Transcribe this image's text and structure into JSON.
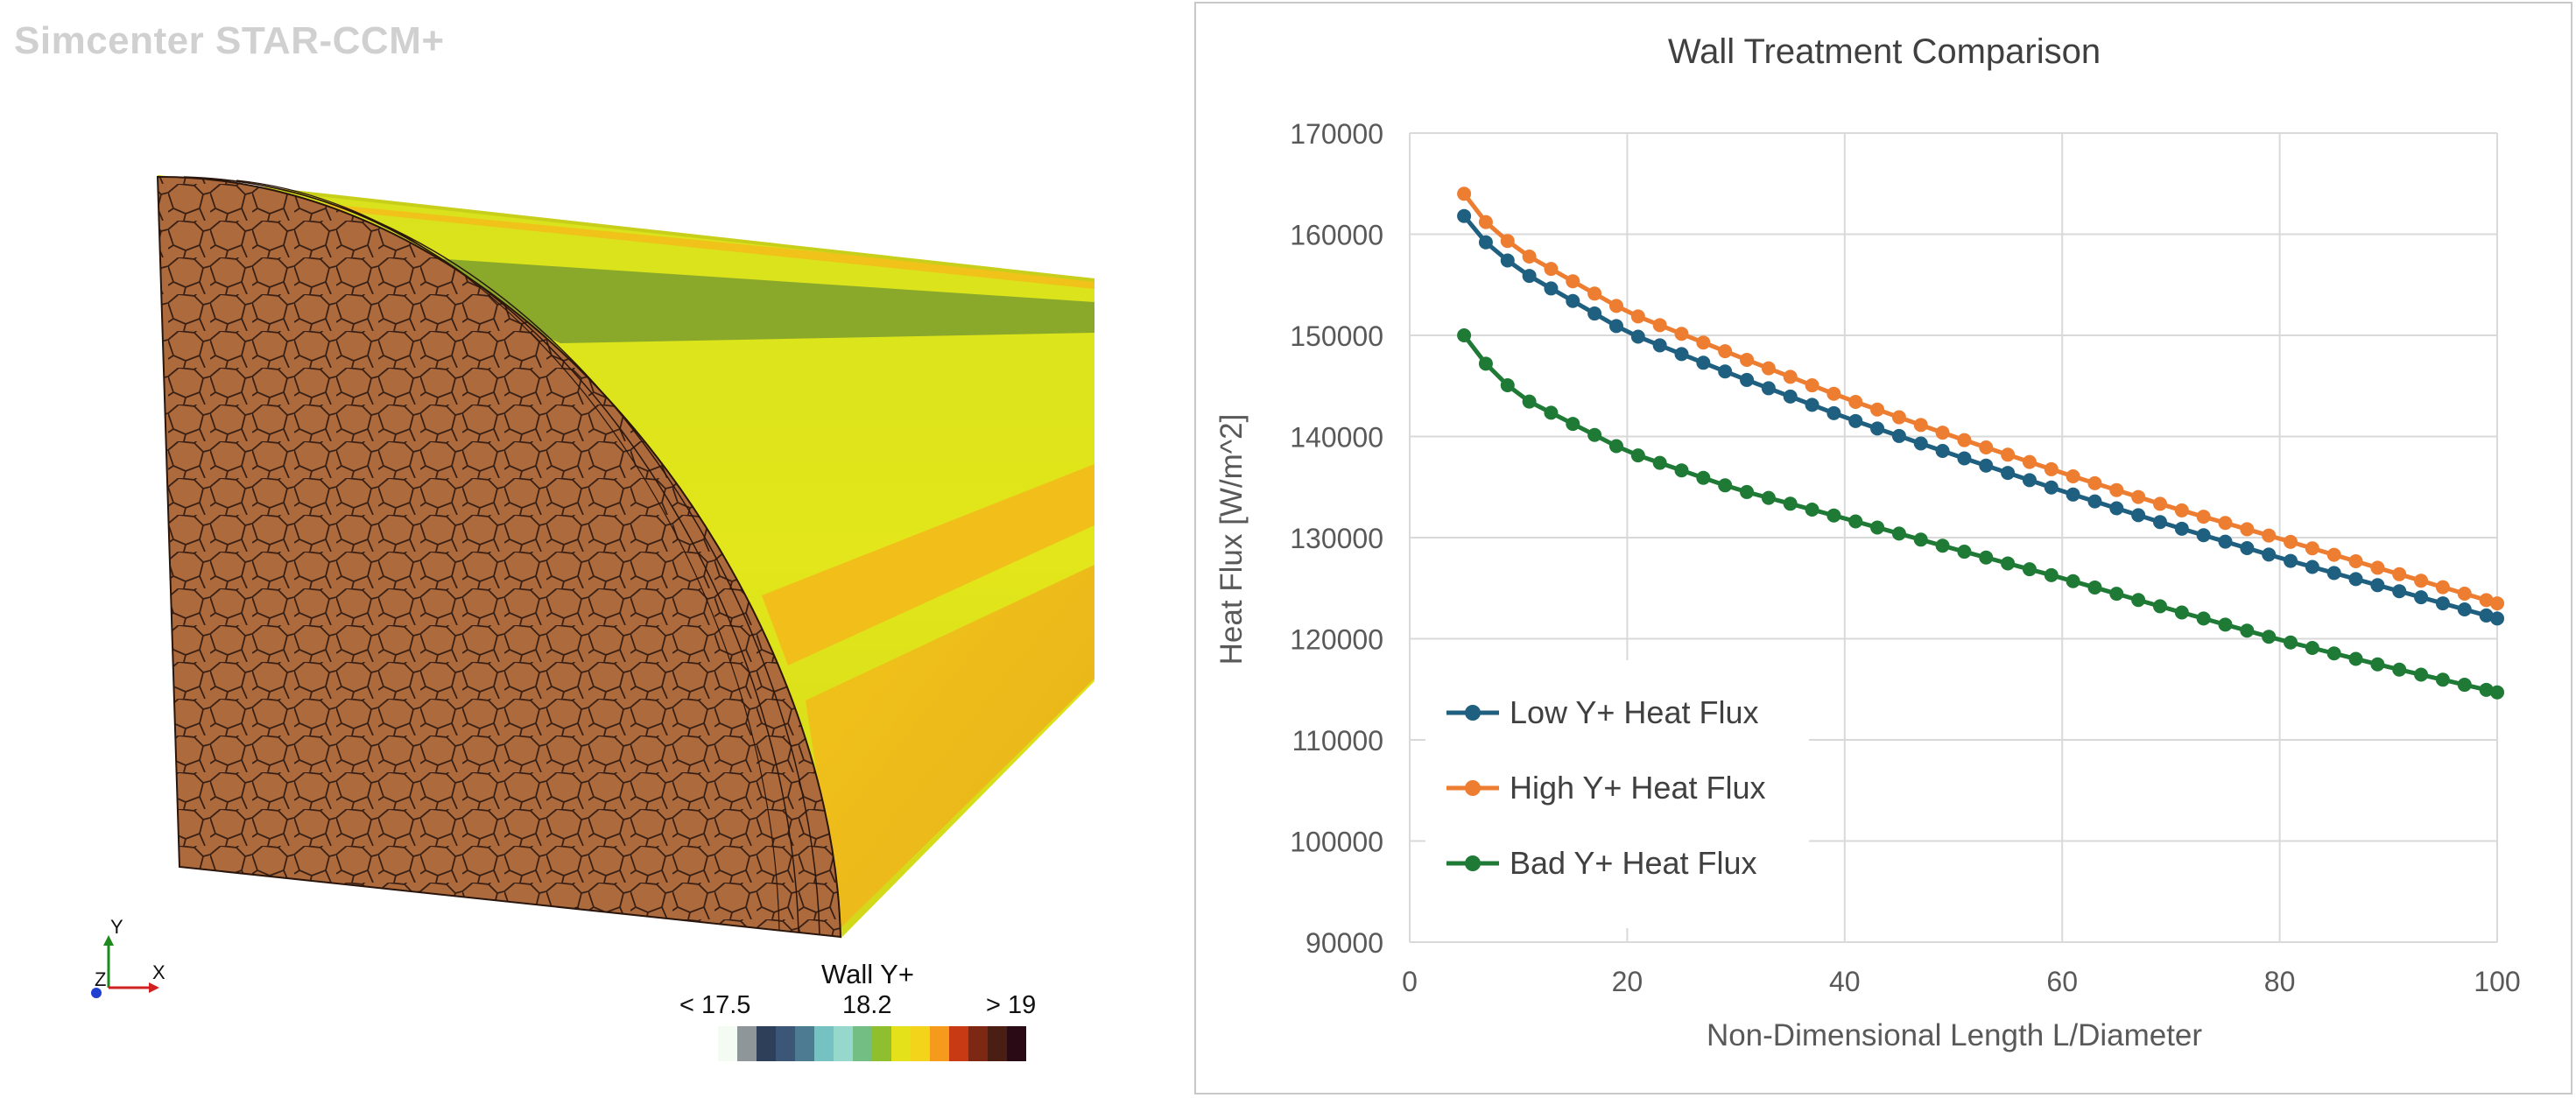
{
  "app": {
    "title": "Simcenter STAR-CCM+"
  },
  "viewport": {
    "triad_labels": {
      "y": "Y",
      "x": "X",
      "z": "Z"
    },
    "legend": {
      "title": "Wall Y+",
      "min_label": "< 17.5",
      "mid_label": "18.2",
      "max_label": "> 19",
      "colors": [
        "#f4fbf2",
        "#8f969a",
        "#2e3f5a",
        "#3b5676",
        "#4d7c92",
        "#76c2c2",
        "#97d8cc",
        "#73bf83",
        "#8fbf2e",
        "#e4e01a",
        "#f3d41a",
        "#f59a1a",
        "#c83a14",
        "#7d2812",
        "#4a1e12",
        "#2a0a14"
      ]
    }
  },
  "chart": {
    "title": "Wall Treatment Comparison",
    "xlabel": "Non-Dimensional Length L/Diameter",
    "ylabel": "Heat Flux [W/m^2]"
  },
  "chart_data": {
    "type": "line",
    "title": "Wall Treatment Comparison",
    "xlabel": "Non-Dimensional Length L/Diameter",
    "ylabel": "Heat Flux [W/m^2]",
    "xlim": [
      0,
      100
    ],
    "ylim": [
      90000,
      170000
    ],
    "x_ticks": [
      0,
      20,
      40,
      60,
      80,
      100
    ],
    "y_ticks": [
      90000,
      100000,
      110000,
      120000,
      130000,
      140000,
      150000,
      160000,
      170000
    ],
    "grid": true,
    "legend_position": "bottom-left",
    "series": [
      {
        "name": "Low Y+ Heat Flux",
        "color": "#1f5f7f",
        "x_start": 5,
        "x_end": 100,
        "x_step": 2,
        "y_anchor_x": [
          5,
          7,
          10,
          20,
          30,
          40,
          50,
          60,
          70,
          80,
          90,
          100
        ],
        "y_anchor_values": [
          161800,
          159200,
          156500,
          150300,
          146000,
          141900,
          138200,
          134600,
          131200,
          128000,
          125000,
          122000
        ]
      },
      {
        "name": "High Y+ Heat Flux",
        "color": "#ed7d31",
        "x_start": 5,
        "x_end": 100,
        "x_step": 2,
        "y_anchor_x": [
          5,
          7,
          10,
          20,
          30,
          40,
          50,
          60,
          70,
          80,
          90,
          100
        ],
        "y_anchor_values": [
          164000,
          161200,
          158400,
          152300,
          148000,
          143800,
          140000,
          136400,
          133000,
          129900,
          126700,
          123500
        ]
      },
      {
        "name": "Bad Y+ Heat Flux",
        "color": "#1e7a35",
        "x_start": 5,
        "x_end": 100,
        "x_step": 2,
        "y_anchor_x": [
          5,
          7,
          10,
          20,
          30,
          40,
          50,
          60,
          70,
          80,
          90,
          100
        ],
        "y_anchor_values": [
          150000,
          147200,
          144000,
          138500,
          134800,
          131900,
          128900,
          126000,
          122900,
          119900,
          117200,
          114700
        ]
      }
    ]
  }
}
